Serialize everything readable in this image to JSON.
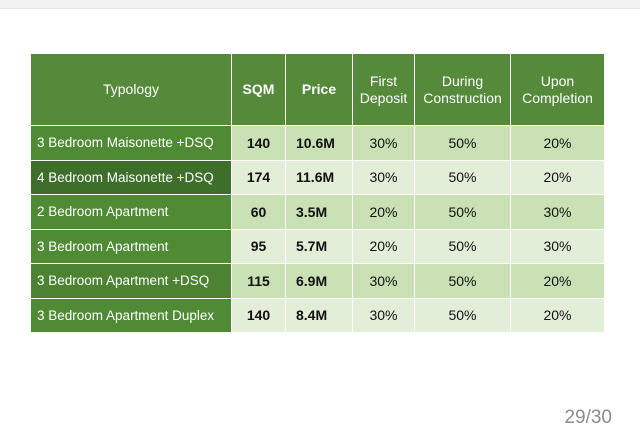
{
  "table": {
    "headers": {
      "typology": "Typology",
      "sqm": "SQM",
      "price": "Price",
      "first_deposit": "First\nDeposit",
      "during_construction": "During\nConstruction",
      "upon_completion": "Upon\nCompletion"
    },
    "rows": [
      {
        "typology": "3 Bedroom Maisonette +DSQ",
        "sqm": "140",
        "price": "10.6M",
        "first_deposit": "30%",
        "during_construction": "50%",
        "upon_completion": "20%"
      },
      {
        "typology": "4 Bedroom Maisonette +DSQ",
        "sqm": "174",
        "price": "11.6M",
        "first_deposit": "30%",
        "during_construction": "50%",
        "upon_completion": "20%"
      },
      {
        "typology": "2 Bedroom Apartment",
        "sqm": "60",
        "price": "3.5M",
        "first_deposit": "20%",
        "during_construction": "50%",
        "upon_completion": "30%"
      },
      {
        "typology": "3 Bedroom Apartment",
        "sqm": "95",
        "price": "5.7M",
        "first_deposit": "20%",
        "during_construction": "50%",
        "upon_completion": "30%"
      },
      {
        "typology": "3 Bedroom Apartment +DSQ",
        "sqm": "115",
        "price": "6.9M",
        "first_deposit": "30%",
        "during_construction": "50%",
        "upon_completion": "20%"
      },
      {
        "typology": "3 Bedroom Apartment Duplex",
        "sqm": "140",
        "price": "8.4M",
        "first_deposit": "30%",
        "during_construction": "50%",
        "upon_completion": "20%"
      }
    ]
  },
  "page_indicator": "29/30",
  "colors": {
    "header_green": "#548a3a",
    "typology_green": "#4f8a35",
    "row_light": "#e3eed9",
    "row_mid": "#c9e1b4",
    "page_text": "#8c8c8c"
  }
}
